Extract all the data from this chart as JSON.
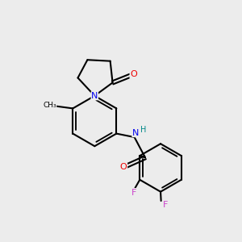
{
  "bg_color": "#ececec",
  "bond_color": "#000000",
  "bond_width": 1.5,
  "atom_colors": {
    "N": "#0000ee",
    "O": "#ee0000",
    "F": "#cc44cc",
    "H": "#008888",
    "C": "#000000"
  },
  "fontsize": 7.5
}
